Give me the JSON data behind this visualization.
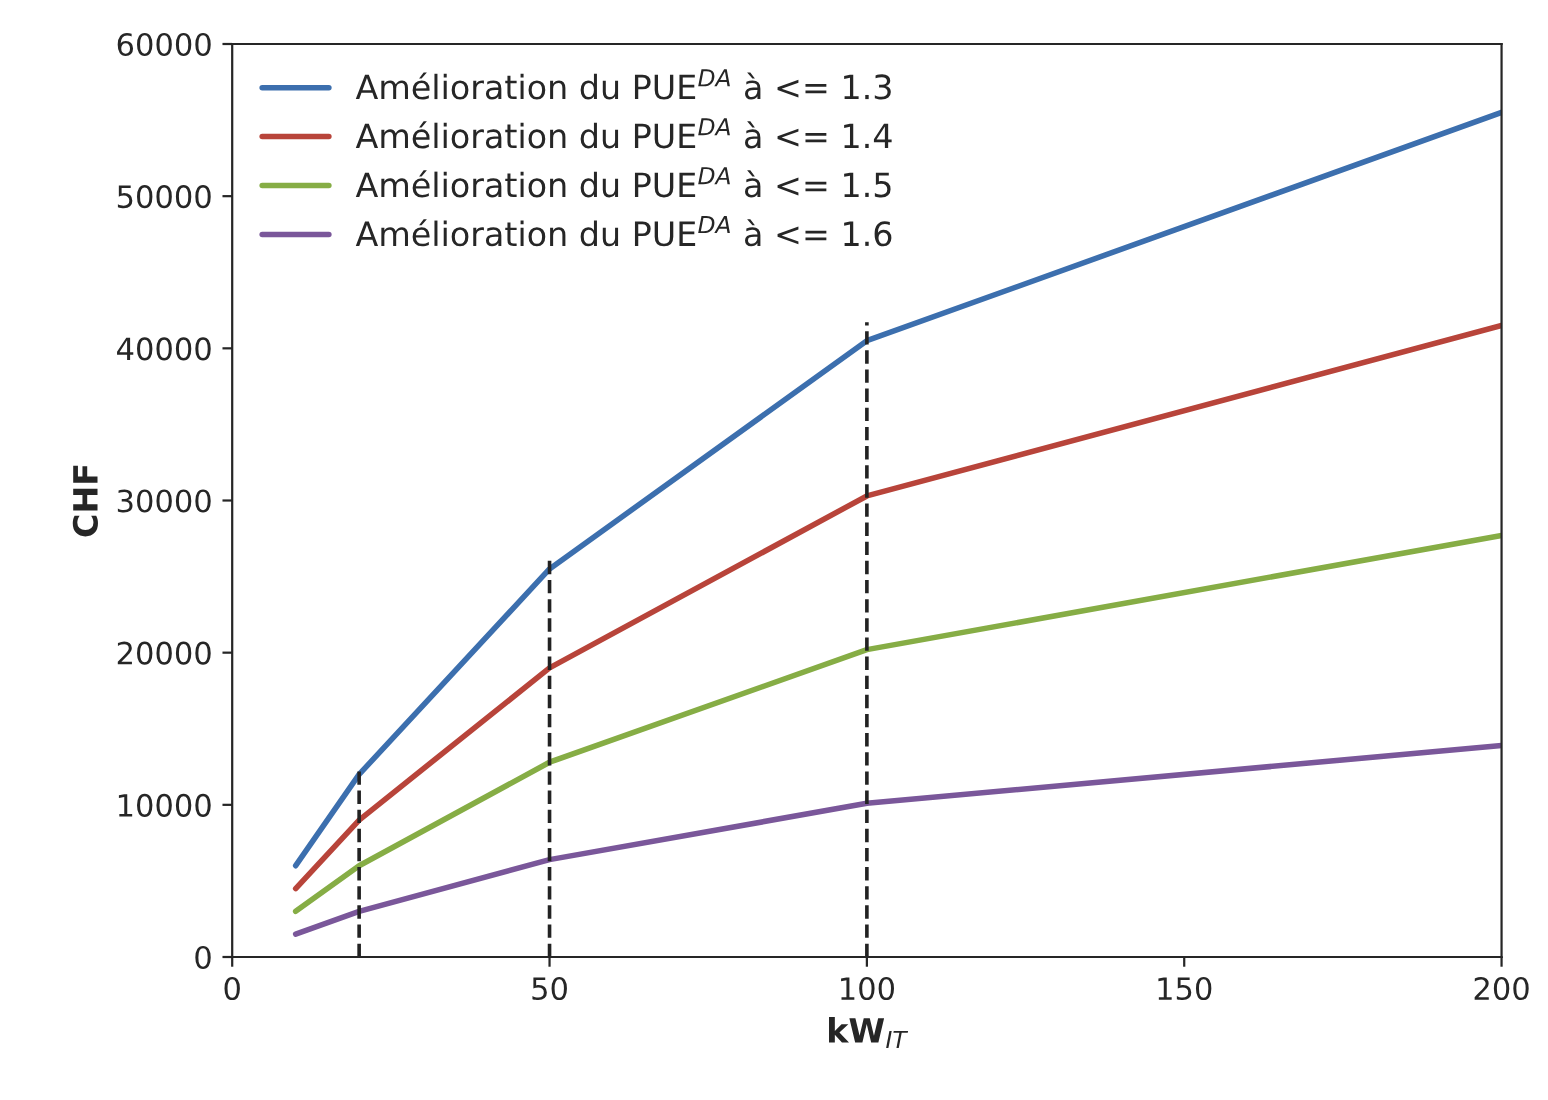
{
  "chart_data": {
    "type": "line",
    "xlabel": "kW$_{IT}$",
    "ylabel": "CHF",
    "x": [
      10,
      20,
      50,
      100,
      200
    ],
    "series": [
      {
        "name": "Amélioration du PUE$^{DA}$ à <= 1.3",
        "color": "#3c6fae",
        "values": [
          6000,
          12000,
          25500,
          40500,
          55500
        ]
      },
      {
        "name": "Amélioration du PUE$^{DA}$ à <= 1.4",
        "color": "#b8443a",
        "values": [
          4500,
          9000,
          19000,
          30300,
          41500
        ]
      },
      {
        "name": "Amélioration du PUE$^{DA}$ à <= 1.5",
        "color": "#86ad45",
        "values": [
          3000,
          6000,
          12800,
          20200,
          27700
        ]
      },
      {
        "name": "Amélioration du PUE$^{DA}$ à <= 1.6",
        "color": "#7a579a",
        "values": [
          1500,
          3000,
          6400,
          10100,
          13900
        ]
      }
    ],
    "ref_lines": [
      {
        "axis": "x",
        "value": 20,
        "color": "#222222",
        "line_style": "dashed"
      },
      {
        "axis": "x",
        "value": 50,
        "color": "#222222",
        "line_style": "dashed"
      },
      {
        "axis": "x",
        "value": 100,
        "color": "#222222",
        "line_style": "dashed"
      }
    ],
    "xlim": [
      0,
      200
    ],
    "xticks": [
      0,
      50,
      100,
      150,
      200
    ],
    "ylim": [
      0,
      60000
    ],
    "yticks": [
      0,
      10000,
      20000,
      30000,
      40000,
      50000,
      60000
    ],
    "grid": false,
    "legend": "top left",
    "marker": "none",
    "line_style": "solid"
  }
}
